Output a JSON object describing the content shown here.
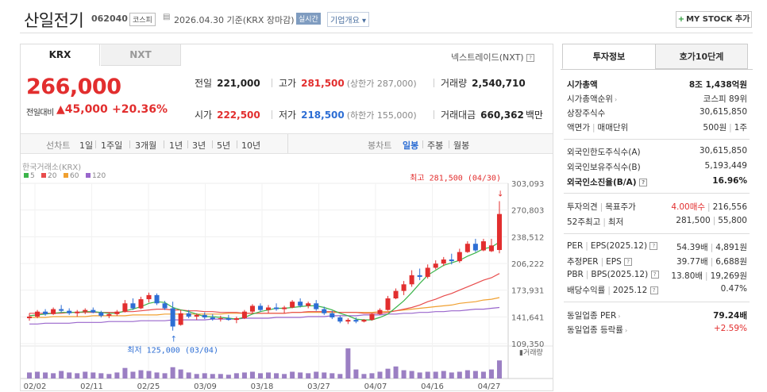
{
  "header": {
    "name": "산일전기",
    "code": "062040",
    "market": "코스피",
    "date": "2026.04.30 기준(KRX 장마감)",
    "realtime_label": "실시간",
    "overview_label": "기업개요",
    "mystock_label": "MY STOCK 추가"
  },
  "tabs": {
    "krx": "KRX",
    "nxt": "NXT"
  },
  "nextrade_label": "넥스트레이드(NXT)",
  "quote": {
    "price": "266,000",
    "change_label": "전일대비",
    "change": "▲45,000",
    "change_pct": "+20.36%",
    "prev_label": "전일",
    "prev": "221,000",
    "high_label": "고가",
    "high": "281,500",
    "upper_limit": "(상한가 287,000)",
    "volume_label": "거래량",
    "volume": "2,540,710",
    "open_label": "시가",
    "open": "222,500",
    "low_label": "저가",
    "low": "218,500",
    "lower_limit": "(하한가 155,000)",
    "amount_label": "거래대금",
    "amount": "660,362",
    "amount_unit": "백만"
  },
  "periods": {
    "line_label": "선차트",
    "items": [
      "1일",
      "1주일",
      "3개월",
      "1년",
      "3년",
      "5년",
      "10년"
    ],
    "candle_label": "봉차트",
    "candle_items": [
      "일봉",
      "주봉",
      "월봉"
    ],
    "candle_active": "일봉"
  },
  "chart_data": {
    "type": "candlestick",
    "source_label": "한국거래소(KRX)",
    "legend": [
      {
        "name": "5",
        "color": "#3cb44b"
      },
      {
        "name": "20",
        "color": "#e84c4c"
      },
      {
        "name": "60",
        "color": "#f0a030"
      },
      {
        "name": "120",
        "color": "#9966cc"
      }
    ],
    "y_ticks": [
      "303,093",
      "270,803",
      "238,512",
      "206,222",
      "173,931",
      "141,641",
      "109,350"
    ],
    "ylim": [
      109350,
      303093
    ],
    "x_labels": [
      "02/02",
      "02/11",
      "02/25",
      "03/09",
      "03/18",
      "03/27",
      "04/07",
      "04/16",
      "04/27"
    ],
    "high_annotation": "최고 281,500 (04/30)",
    "low_annotation": "최저 125,000 (03/04)",
    "volume_label": "거래량",
    "candles": [
      [
        140000,
        146000,
        137000,
        142000
      ],
      [
        142000,
        150000,
        140000,
        148000
      ],
      [
        148000,
        151000,
        143000,
        145000
      ],
      [
        145000,
        153000,
        144000,
        151000
      ],
      [
        151000,
        156000,
        147000,
        149000
      ],
      [
        149000,
        152000,
        144000,
        146000
      ],
      [
        146000,
        150000,
        142000,
        148000
      ],
      [
        148000,
        152000,
        145000,
        150000
      ],
      [
        150000,
        153000,
        146000,
        147000
      ],
      [
        147000,
        149000,
        141000,
        143000
      ],
      [
        143000,
        147000,
        140000,
        145000
      ],
      [
        145000,
        150000,
        143000,
        148000
      ],
      [
        148000,
        162000,
        147000,
        158000
      ],
      [
        158000,
        164000,
        150000,
        152000
      ],
      [
        152000,
        166000,
        151000,
        163000
      ],
      [
        163000,
        171000,
        159000,
        168000
      ],
      [
        168000,
        170000,
        156000,
        158000
      ],
      [
        158000,
        161000,
        150000,
        152000
      ],
      [
        152000,
        160000,
        125000,
        130000
      ],
      [
        132000,
        150000,
        131000,
        146000
      ],
      [
        146000,
        150000,
        140000,
        142000
      ],
      [
        142000,
        146000,
        138000,
        144000
      ],
      [
        144000,
        147000,
        139000,
        141000
      ],
      [
        141000,
        145000,
        137000,
        139000
      ],
      [
        139000,
        143000,
        136000,
        140000
      ],
      [
        140000,
        144000,
        137000,
        138000
      ],
      [
        138000,
        142000,
        134000,
        140000
      ],
      [
        140000,
        150000,
        139000,
        148000
      ],
      [
        148000,
        157000,
        146000,
        155000
      ],
      [
        155000,
        158000,
        148000,
        150000
      ],
      [
        150000,
        156000,
        146000,
        153000
      ],
      [
        153000,
        158000,
        149000,
        151000
      ],
      [
        151000,
        155000,
        146000,
        153000
      ],
      [
        153000,
        162000,
        152000,
        160000
      ],
      [
        160000,
        164000,
        153000,
        155000
      ],
      [
        155000,
        160000,
        152000,
        158000
      ],
      [
        158000,
        162000,
        149000,
        151000
      ],
      [
        151000,
        154000,
        144000,
        146000
      ],
      [
        146000,
        149000,
        139000,
        141000
      ],
      [
        141000,
        143000,
        134000,
        136000
      ],
      [
        136000,
        140000,
        133000,
        138000
      ],
      [
        138000,
        141000,
        134000,
        136000
      ],
      [
        136000,
        139000,
        135000,
        138000
      ],
      [
        138000,
        146000,
        137000,
        145000
      ],
      [
        145000,
        152000,
        144000,
        150000
      ],
      [
        150000,
        167000,
        149000,
        164000
      ],
      [
        164000,
        176000,
        163000,
        173000
      ],
      [
        173000,
        185000,
        168000,
        181000
      ],
      [
        181000,
        198000,
        178000,
        192000
      ],
      [
        192000,
        200000,
        186000,
        190000
      ],
      [
        190000,
        205000,
        188000,
        201000
      ],
      [
        201000,
        210000,
        199000,
        206000
      ],
      [
        206000,
        214000,
        203000,
        211000
      ],
      [
        211000,
        218000,
        205000,
        209000
      ],
      [
        209000,
        224000,
        207000,
        220000
      ],
      [
        220000,
        233000,
        219000,
        230000
      ],
      [
        230000,
        236000,
        220000,
        222000
      ],
      [
        222000,
        236000,
        221000,
        233000
      ],
      [
        221000,
        236000,
        220000,
        228000
      ],
      [
        222500,
        281500,
        218500,
        266000
      ]
    ],
    "ma5": [
      143,
      144,
      145,
      146,
      147,
      147,
      147,
      148,
      148,
      147,
      146,
      146,
      149,
      151,
      154,
      158,
      160,
      159,
      153,
      150,
      148,
      145,
      142,
      142,
      141,
      140,
      139,
      141,
      145,
      148,
      150,
      152,
      152,
      153,
      154,
      155,
      155,
      153,
      150,
      146,
      143,
      139,
      138,
      138,
      141,
      145,
      153,
      161,
      171,
      182,
      192,
      198,
      204,
      207,
      210,
      215,
      219,
      224,
      226,
      232
    ],
    "ma20": [
      146,
      146,
      146,
      146,
      146,
      147,
      147,
      147,
      147,
      147,
      147,
      147,
      148,
      148,
      149,
      150,
      151,
      151,
      150,
      150,
      149,
      149,
      148,
      148,
      147,
      147,
      147,
      146,
      146,
      146,
      146,
      146,
      146,
      147,
      147,
      148,
      148,
      148,
      148,
      147,
      147,
      147,
      146,
      146,
      146,
      147,
      149,
      151,
      153,
      156,
      160,
      163,
      167,
      170,
      174,
      178,
      182,
      186,
      189,
      194
    ],
    "ma60": [
      141,
      141,
      141,
      142,
      142,
      142,
      142,
      142,
      143,
      143,
      143,
      143,
      143,
      144,
      144,
      144,
      144,
      145,
      145,
      145,
      145,
      145,
      145,
      145,
      145,
      146,
      146,
      146,
      146,
      146,
      146,
      146,
      146,
      147,
      147,
      147,
      147,
      147,
      147,
      147,
      147,
      147,
      147,
      147,
      148,
      148,
      149,
      150,
      151,
      152,
      153,
      154,
      155,
      156,
      158,
      159,
      160,
      162,
      163,
      165
    ],
    "ma120": [
      133,
      133,
      134,
      134,
      134,
      134,
      135,
      135,
      135,
      135,
      136,
      136,
      136,
      136,
      137,
      137,
      137,
      137,
      138,
      138,
      138,
      138,
      138,
      139,
      139,
      139,
      139,
      140,
      140,
      140,
      140,
      141,
      141,
      141,
      141,
      142,
      142,
      142,
      143,
      143,
      143,
      143,
      144,
      144,
      144,
      145,
      145,
      146,
      146,
      147,
      147,
      148,
      148,
      149,
      149,
      150,
      151,
      151,
      152,
      153
    ],
    "volume": [
      8,
      9,
      8,
      7,
      10,
      8,
      7,
      9,
      8,
      7,
      6,
      8,
      14,
      9,
      11,
      10,
      8,
      7,
      15,
      12,
      8,
      6,
      7,
      6,
      6,
      5,
      7,
      8,
      9,
      7,
      8,
      7,
      6,
      9,
      8,
      7,
      9,
      8,
      7,
      6,
      40,
      12,
      6,
      7,
      9,
      13,
      16,
      11,
      10,
      8,
      9,
      9,
      10,
      8,
      9,
      11,
      10,
      9,
      12,
      24
    ]
  },
  "side": {
    "tab_active": "투자정보",
    "tab_other": "호가10단계",
    "rows1": [
      {
        "k": "시가총액",
        "v": "8조 1,438억원",
        "bold": true
      },
      {
        "k": "시가총액순위",
        "v": "코스피 89위",
        "arrow": true
      },
      {
        "k": "상장주식수",
        "v": "30,615,850"
      },
      {
        "k": "액면가",
        "k2": "매매단위",
        "v": "500원",
        "v2": "1주"
      }
    ],
    "rows2": [
      {
        "k": "외국인한도주식수(A)",
        "v": "30,615,850"
      },
      {
        "k": "외국인보유주식수(B)",
        "v": "5,193,449"
      },
      {
        "k": "외국인소진율(B/A)",
        "v": "16.96%",
        "bold": true,
        "q": true
      }
    ],
    "opinion_label": "투자의견",
    "target_label": "목표주가",
    "opinion": "4.00매수",
    "target": "216,556",
    "wk52_label": "52주최고",
    "wk52_low_label": "최저",
    "wk52_high": "281,500",
    "wk52_low": "55,800",
    "rows3": [
      {
        "k1": "PER",
        "k2": "EPS(2025.12)",
        "v1": "54.39배",
        "v2": "4,891원"
      },
      {
        "k1": "추정PER",
        "k2": "EPS",
        "v1": "39.77배",
        "v2": "6,688원"
      },
      {
        "k1": "PBR",
        "k2": "BPS(2025.12)",
        "v1": "13.80배",
        "v2": "19,269원"
      },
      {
        "k1": "배당수익률",
        "k2": "2025.12",
        "v1": "0.47%",
        "v2": ""
      }
    ],
    "sector_per_label": "동일업종 PER",
    "sector_per": "79.24배",
    "sector_rate_label": "동일업종 등락률",
    "sector_rate": "+2.59%"
  }
}
